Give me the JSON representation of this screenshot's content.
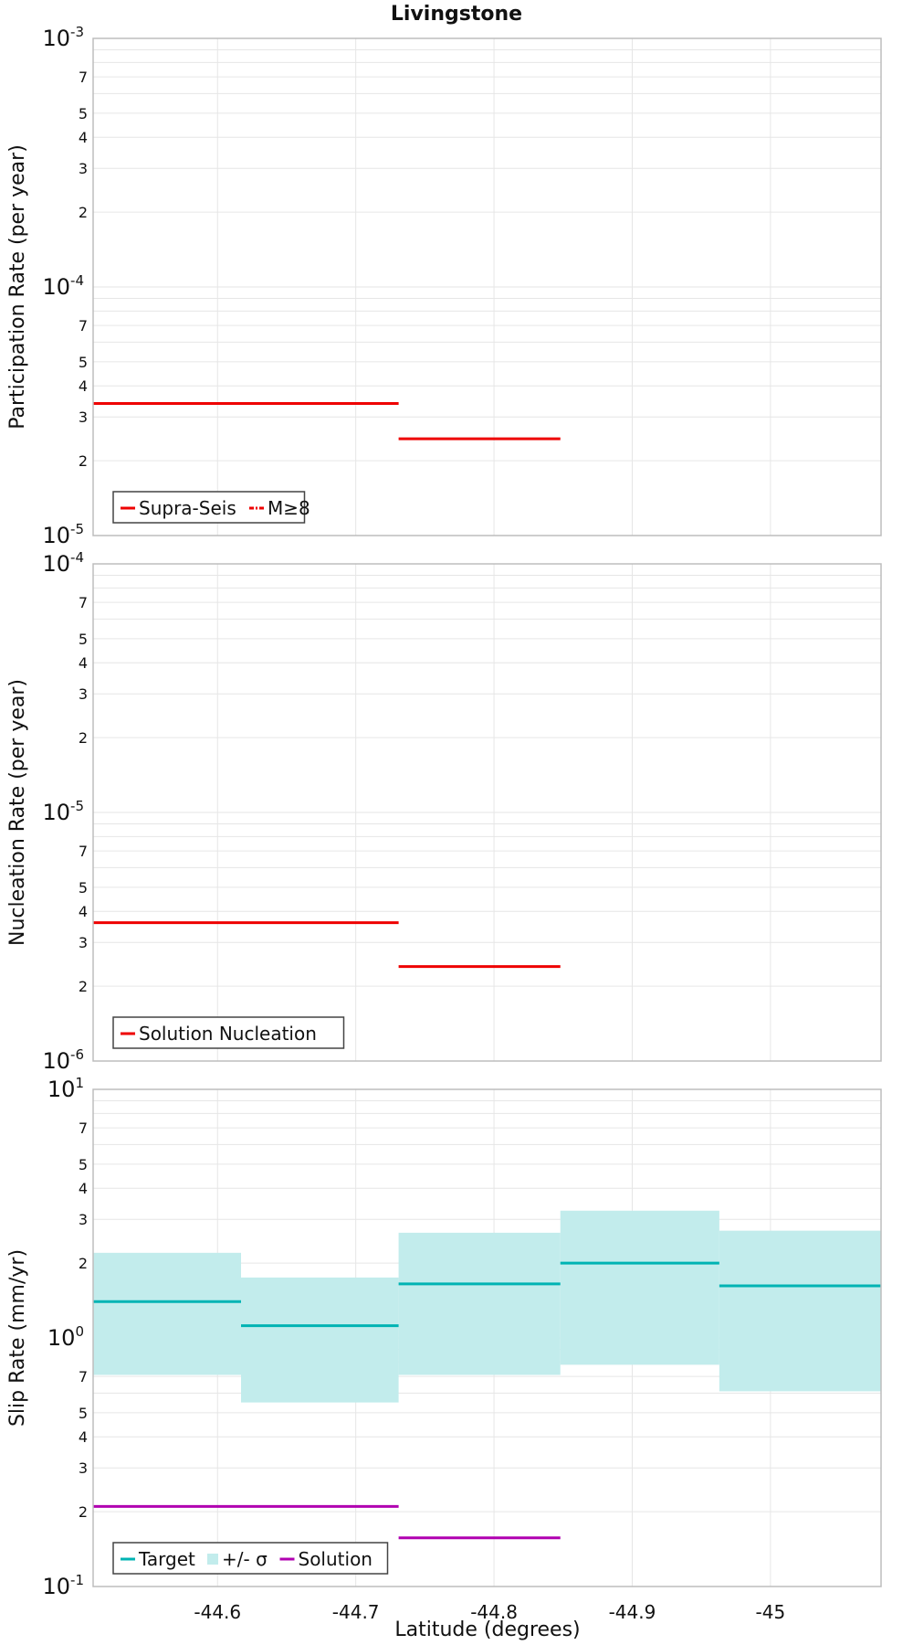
{
  "title": "Livingstone",
  "xlabel": "Latitude (degrees)",
  "x_ticks": [
    "-44.6",
    "-44.7",
    "-44.8",
    "-44.9",
    "-45"
  ],
  "chart_data": [
    {
      "type": "line",
      "ylabel": "Participation Rate (per year)",
      "yscale": "log",
      "ylim": [
        1e-05,
        0.001
      ],
      "xlim": [
        -44.51,
        -45.08
      ],
      "y_decade_labels": [
        {
          "base": "10",
          "exp": "-3"
        },
        {
          "base": "10",
          "exp": "-4"
        },
        {
          "base": "10",
          "exp": "-5"
        }
      ],
      "minor_labels": [
        "7",
        "5",
        "4",
        "3",
        "2"
      ],
      "legend": [
        {
          "label": "Supra-Seis",
          "color": "#ee0000",
          "style": "solid"
        },
        {
          "label": "M≥8",
          "color": "#ee0000",
          "style": "dashdot"
        }
      ],
      "series": [
        {
          "name": "Supra-Seis",
          "color": "#ee0000",
          "segments": [
            {
              "x": [
                -44.51,
                -44.617
              ],
              "y": 3.4e-05
            },
            {
              "x": [
                -44.617,
                -44.731
              ],
              "y": 3.4e-05
            },
            {
              "x": [
                -44.731,
                -44.848
              ],
              "y": 2.45e-05
            }
          ]
        }
      ]
    },
    {
      "type": "line",
      "ylabel": "Nucleation Rate (per year)",
      "yscale": "log",
      "ylim": [
        1e-06,
        0.0001
      ],
      "xlim": [
        -44.51,
        -45.08
      ],
      "y_decade_labels": [
        {
          "base": "10",
          "exp": "-4"
        },
        {
          "base": "10",
          "exp": "-5"
        },
        {
          "base": "10",
          "exp": "-6"
        }
      ],
      "minor_labels": [
        "7",
        "5",
        "4",
        "3",
        "2"
      ],
      "legend": [
        {
          "label": "Solution Nucleation",
          "color": "#ee0000",
          "style": "solid"
        }
      ],
      "series": [
        {
          "name": "Solution Nucleation",
          "color": "#ee0000",
          "segments": [
            {
              "x": [
                -44.51,
                -44.617
              ],
              "y": 3.6e-06
            },
            {
              "x": [
                -44.617,
                -44.731
              ],
              "y": 3.6e-06
            },
            {
              "x": [
                -44.731,
                -44.848
              ],
              "y": 2.4e-06
            }
          ]
        }
      ]
    },
    {
      "type": "line",
      "ylabel": "Slip Rate (mm/yr)",
      "yscale": "log",
      "ylim": [
        0.1,
        10
      ],
      "xlim": [
        -44.51,
        -45.08
      ],
      "y_decade_labels": [
        {
          "base": "10",
          "exp": "1"
        },
        {
          "base": "10",
          "exp": "0"
        },
        {
          "base": "10",
          "exp": "-1"
        }
      ],
      "minor_labels": [
        "7",
        "5",
        "4",
        "3",
        "2"
      ],
      "legend": [
        {
          "label": "Target",
          "color": "#00b3b3",
          "style": "solid"
        },
        {
          "label": "+/- σ",
          "color": "#c2ecec",
          "style": "box"
        },
        {
          "label": "Solution",
          "color": "#b000b0",
          "style": "solid"
        }
      ],
      "bands": [
        {
          "x": [
            -44.51,
            -44.617
          ],
          "low": 0.71,
          "high": 2.2
        },
        {
          "x": [
            -44.617,
            -44.731
          ],
          "low": 0.55,
          "high": 1.75
        },
        {
          "x": [
            -44.731,
            -44.848
          ],
          "low": 0.71,
          "high": 2.65
        },
        {
          "x": [
            -44.848,
            -44.963
          ],
          "low": 0.78,
          "high": 3.25
        },
        {
          "x": [
            -44.963,
            -45.08
          ],
          "low": 0.61,
          "high": 2.7
        }
      ],
      "series": [
        {
          "name": "Target",
          "color": "#00b3b3",
          "segments": [
            {
              "x": [
                -44.51,
                -44.617
              ],
              "y": 1.4
            },
            {
              "x": [
                -44.617,
                -44.731
              ],
              "y": 1.12
            },
            {
              "x": [
                -44.731,
                -44.848
              ],
              "y": 1.65
            },
            {
              "x": [
                -44.848,
                -44.963
              ],
              "y": 2.0
            },
            {
              "x": [
                -44.963,
                -45.08
              ],
              "y": 1.62
            }
          ]
        },
        {
          "name": "Solution",
          "color": "#b000b0",
          "segments": [
            {
              "x": [
                -44.51,
                -44.617
              ],
              "y": 0.21
            },
            {
              "x": [
                -44.617,
                -44.731
              ],
              "y": 0.21
            },
            {
              "x": [
                -44.731,
                -44.848
              ],
              "y": 0.157
            }
          ]
        }
      ]
    }
  ],
  "colors": {
    "grid": "#e6e6e6",
    "frame": "#bdbdbd",
    "band": "#c2ecec"
  }
}
